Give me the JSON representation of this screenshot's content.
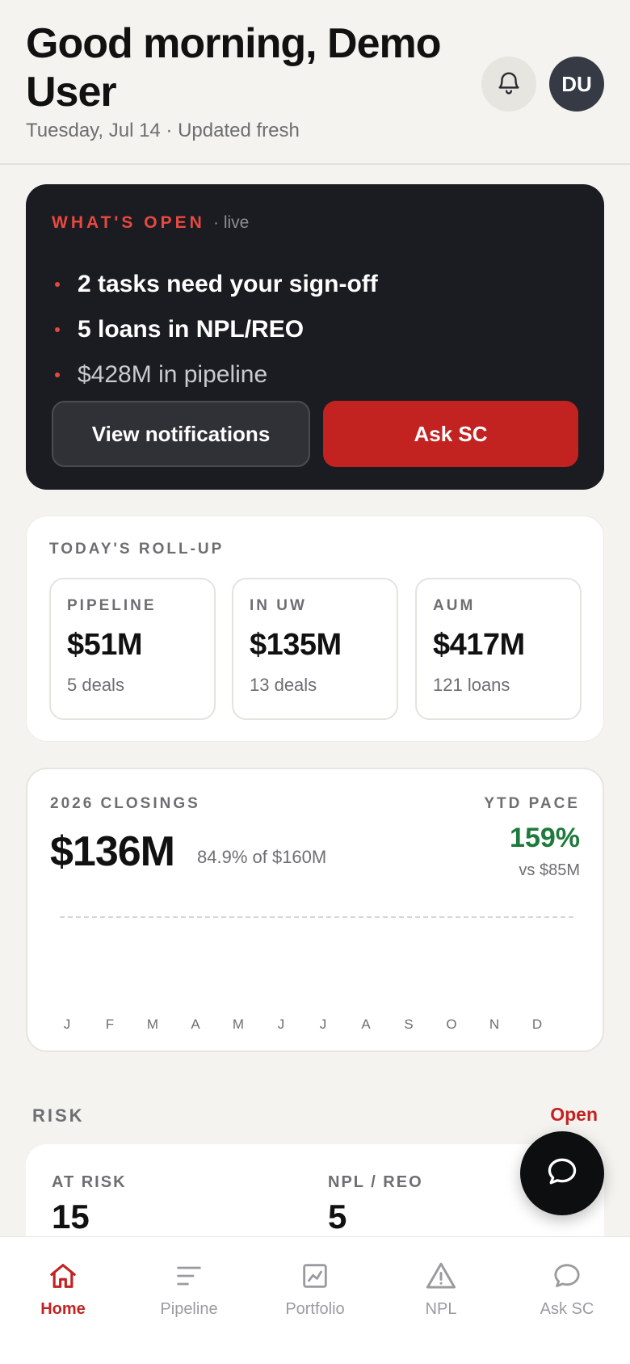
{
  "header": {
    "greeting": "Good morning, Demo User",
    "date_line": "Tuesday, Jul 14 · Updated fresh",
    "avatar_initials": "DU"
  },
  "whats_open": {
    "title": "WHAT'S OPEN",
    "live": "· live",
    "items": [
      "2 tasks need your sign-off",
      "5 loans in NPL/REO",
      "$428M in pipeline"
    ],
    "view_notifications": "View notifications",
    "ask_sc": "Ask SC"
  },
  "rollup": {
    "title": "TODAY'S ROLL-UP",
    "tiles": [
      {
        "label": "PIPELINE",
        "value": "$51M",
        "sub": "5 deals"
      },
      {
        "label": "IN UW",
        "value": "$135M",
        "sub": "13 deals"
      },
      {
        "label": "AUM",
        "value": "$417M",
        "sub": "121 loans"
      }
    ]
  },
  "closings": {
    "title": "2026 CLOSINGS",
    "value": "$136M",
    "percent_of_goal": "84.9% of $160M",
    "ytd_label": "YTD PACE",
    "ytd_value": "159%",
    "ytd_sub": "vs $85M",
    "months": [
      "J",
      "F",
      "M",
      "A",
      "M",
      "J",
      "J",
      "A",
      "S",
      "O",
      "N",
      "D"
    ]
  },
  "risk": {
    "label": "RISK",
    "open_link": "Open",
    "at_risk_label": "AT RISK",
    "at_risk_value": "15",
    "npl_label": "NPL / REO",
    "npl_value": "5"
  },
  "tabbar": {
    "tabs": [
      {
        "label": "Home",
        "icon": "home-icon",
        "active": true
      },
      {
        "label": "Pipeline",
        "icon": "pipeline-icon",
        "active": false
      },
      {
        "label": "Portfolio",
        "icon": "chart-icon",
        "active": false
      },
      {
        "label": "NPL",
        "icon": "warning-icon",
        "active": false
      },
      {
        "label": "Ask SC",
        "icon": "chat-icon",
        "active": false
      }
    ]
  },
  "colors": {
    "accent_red": "#c22321",
    "success_green": "#1e7a3c",
    "dark_card": "#1b1c21",
    "background": "#f4f3ef"
  }
}
